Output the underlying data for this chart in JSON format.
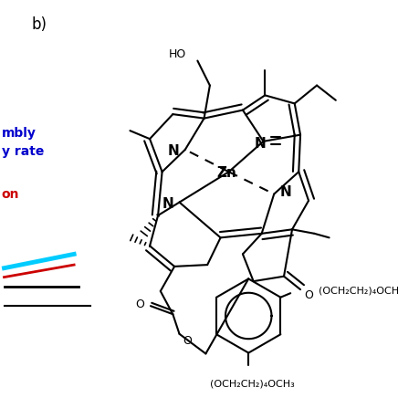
{
  "bg_color": "#ffffff",
  "black": "#000000",
  "blue": "#0000cc",
  "red": "#cc0000",
  "cyan": "#00ccff",
  "figsize": [
    4.36,
    4.36
  ],
  "dpi": 100,
  "lw": 1.5,
  "label_b": "b)",
  "Zn_label": "Zn",
  "N_label": "N",
  "HO_label": "HO",
  "O_label": "O",
  "top_chain": "(OCH₂CH₂)₄OCH",
  "bottom_chain": "(OCH₂CH₂)₄OCH₃",
  "left_blue1": "mbly",
  "left_blue2": "y rate",
  "left_red": "on"
}
